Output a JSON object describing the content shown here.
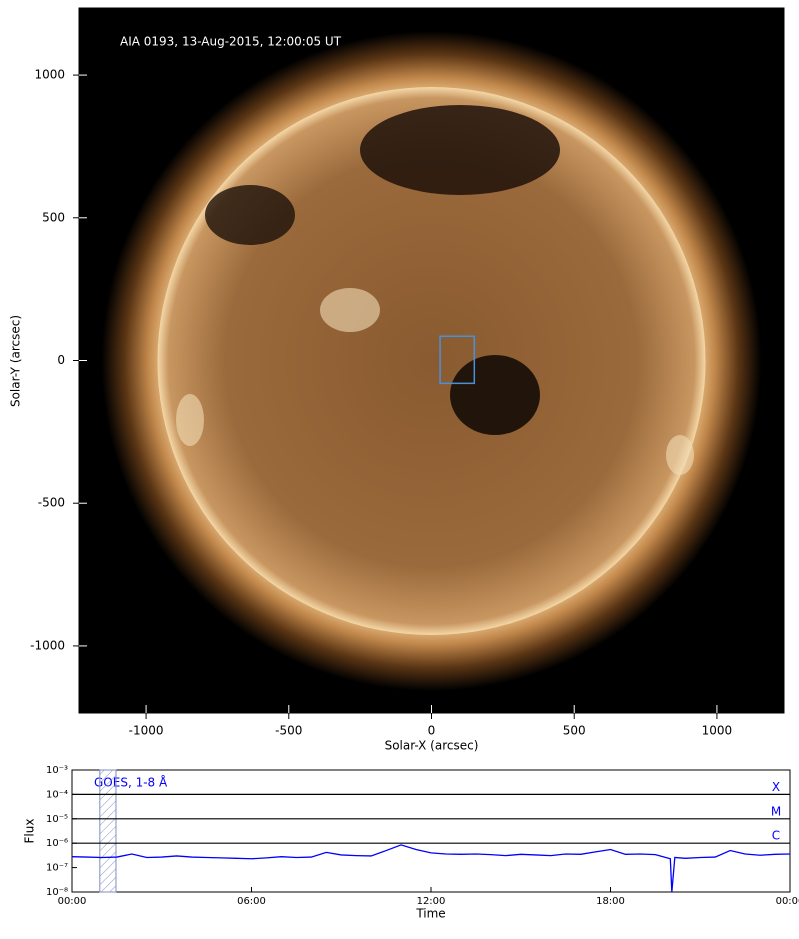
{
  "chart_data": [
    {
      "type": "image",
      "annotation": "AIA 0193, 13-Aug-2015, 12:00:05 UT",
      "xlabel": "Solar-X (arcsec)",
      "ylabel": "Solar-Y (arcsec)",
      "xlim": [
        -1235,
        1235
      ],
      "ylim": [
        -1235,
        1235
      ],
      "xticks": [
        -1000,
        -500,
        0,
        500,
        1000
      ],
      "yticks": [
        -1000,
        -500,
        0,
        500,
        1000
      ],
      "box": {
        "x": [
          30,
          150
        ],
        "y": [
          -80,
          85
        ],
        "color": "#4a90d9"
      }
    },
    {
      "type": "line",
      "annotation": "GOES, 1-8 Å",
      "xlabel": "Time",
      "ylabel": "Flux",
      "xlim": [
        0,
        24
      ],
      "xticks": [
        {
          "value": 0,
          "label": "00:00"
        },
        {
          "value": 6,
          "label": "06:00"
        },
        {
          "value": 12,
          "label": "12:00"
        },
        {
          "value": 18,
          "label": "18:00"
        },
        {
          "value": 24,
          "label": "00:00"
        }
      ],
      "ylim": [
        1e-08,
        0.001
      ],
      "log_y": true,
      "yticks": [
        {
          "value": 1e-08,
          "label": "10⁻⁸"
        },
        {
          "value": 1e-07,
          "label": "10⁻⁷"
        },
        {
          "value": 1e-06,
          "label": "10⁻⁶"
        },
        {
          "value": 1e-05,
          "label": "10⁻⁵"
        },
        {
          "value": 0.0001,
          "label": "10⁻⁴"
        },
        {
          "value": 0.001,
          "label": "10⁻³"
        }
      ],
      "levels": [
        {
          "value": 0.0001,
          "label": "X"
        },
        {
          "value": 1e-05,
          "label": "M"
        },
        {
          "value": 1e-06,
          "label": "C"
        }
      ],
      "shaded_x": [
        0.93,
        1.47
      ],
      "series": [
        {
          "color": "#0000ff",
          "x": [
            0,
            0.5,
            1,
            1.5,
            2,
            2.5,
            3,
            3.5,
            4,
            4.5,
            5,
            5.5,
            6,
            6.5,
            7,
            7.5,
            8,
            8.5,
            9,
            9.5,
            10,
            10.5,
            11,
            11.5,
            12,
            12.5,
            13,
            13.5,
            14,
            14.5,
            15,
            15.5,
            16,
            16.5,
            17,
            17.5,
            18,
            18.5,
            19,
            19.5,
            20,
            20.05,
            20.15,
            20.5,
            21,
            21.5,
            22,
            22.5,
            23,
            23.5,
            24
          ],
          "values": [
            2.8e-07,
            2.7e-07,
            2.6e-07,
            2.7e-07,
            3.6e-07,
            2.6e-07,
            2.7e-07,
            3e-07,
            2.7e-07,
            2.6e-07,
            2.5e-07,
            2.4e-07,
            2.3e-07,
            2.5e-07,
            2.8e-07,
            2.6e-07,
            2.7e-07,
            4.2e-07,
            3.3e-07,
            3.1e-07,
            3e-07,
            5e-07,
            8.5e-07,
            5.5e-07,
            4e-07,
            3.6e-07,
            3.5e-07,
            3.6e-07,
            3.4e-07,
            3.1e-07,
            3.5e-07,
            3.3e-07,
            3.1e-07,
            3.6e-07,
            3.5e-07,
            4.4e-07,
            5.5e-07,
            3.5e-07,
            3.6e-07,
            3.4e-07,
            2.3e-07,
            1e-08,
            2.6e-07,
            2.4e-07,
            2.6e-07,
            2.7e-07,
            5e-07,
            3.6e-07,
            3.2e-07,
            3.5e-07,
            3.6e-07
          ]
        }
      ]
    }
  ]
}
